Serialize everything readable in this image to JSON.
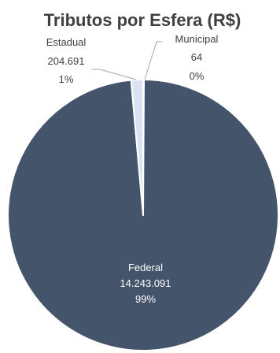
{
  "chart_data": {
    "type": "pie",
    "title": "Tributos por Esfera (R$)",
    "categories": [
      "Federal",
      "Estadual",
      "Municipal"
    ],
    "values": [
      14243091,
      204691,
      64
    ],
    "value_labels": [
      "14.243.091",
      "204.691",
      "64"
    ],
    "percent_labels": [
      "99%",
      "1%",
      "0%"
    ],
    "colors": {
      "slices": [
        "#44546a",
        "#dae3f3",
        "#4472c4"
      ],
      "slice_border": "#ffffff",
      "label_inside": "#ffffff",
      "label_outside": "#404040",
      "leader_line": "#a6a6a6"
    },
    "legend": "none"
  }
}
